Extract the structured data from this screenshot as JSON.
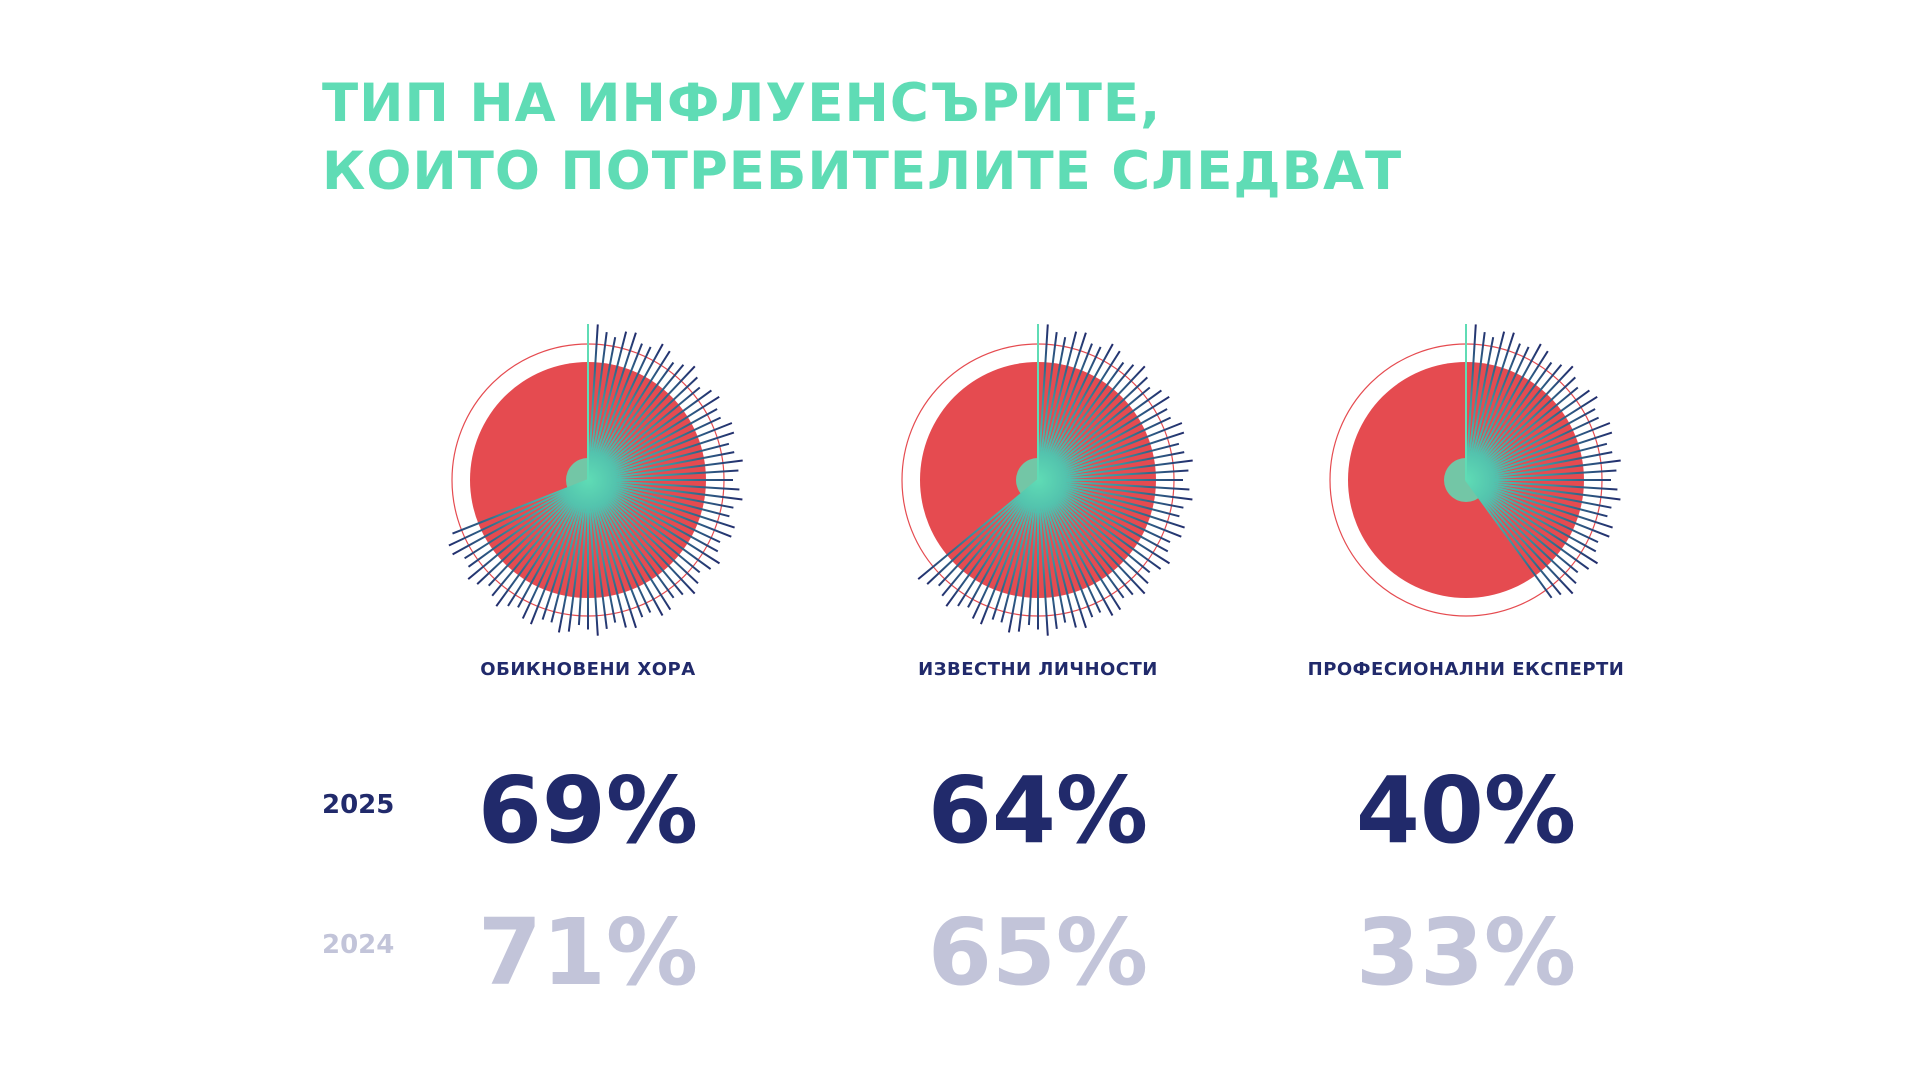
{
  "title": {
    "line1": "ТИП НА ИНФЛУЕНСЪРИТЕ,",
    "line2": "КОИТО ПОТРЕБИТЕЛИТЕ СЛЕДВАТ"
  },
  "years": {
    "current": "2025",
    "previous": "2024"
  },
  "colors": {
    "title": "#5fdcb5",
    "pie_red": "#e54b50",
    "ring_red": "#e54b50",
    "ray_start": "#5fdcb5",
    "ray_end": "#212a6b",
    "navy": "#212a6b",
    "grey": "#c2c4d9"
  },
  "chart_data": [
    {
      "type": "pie",
      "category": "ОБИКНОВЕНИ ХОРА",
      "value_2025": 69,
      "value_2024": 71,
      "label_2025": "69%",
      "label_2024": "71%"
    },
    {
      "type": "pie",
      "category": "ИЗВЕСТНИ ЛИЧНОСТИ",
      "value_2025": 64,
      "value_2024": 65,
      "label_2025": "64%",
      "label_2024": "65%"
    },
    {
      "type": "pie",
      "category": "ПРОФЕСИОНАЛНИ ЕКСПЕРТИ",
      "value_2025": 40,
      "value_2024": 33,
      "label_2025": "40%",
      "label_2024": "33%"
    }
  ]
}
